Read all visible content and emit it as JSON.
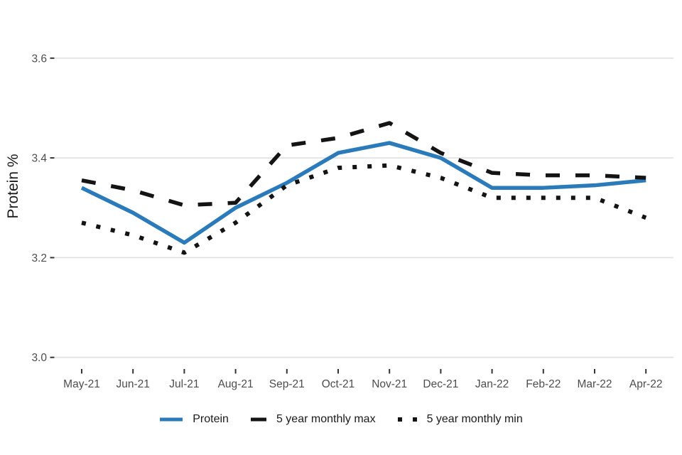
{
  "chart_data": {
    "type": "line",
    "title": "",
    "xlabel": "",
    "ylabel": "Protein %",
    "x": [
      "May-21",
      "Jun-21",
      "Jul-21",
      "Aug-21",
      "Sep-21",
      "Oct-21",
      "Nov-21",
      "Dec-21",
      "Jan-22",
      "Feb-22",
      "Mar-22",
      "Apr-22"
    ],
    "y_ticks": [
      3.0,
      3.2,
      3.4,
      3.6
    ],
    "y_tick_labels": [
      "3.0",
      "3.2",
      "3.4",
      "3.6"
    ],
    "ylim": [
      2.98,
      3.68
    ],
    "grid": "horizontal-only",
    "legend_position": "bottom",
    "series": [
      {
        "name": "Protein",
        "style": "solid",
        "color": "#2b7bba",
        "values": [
          3.34,
          3.29,
          3.23,
          3.3,
          3.35,
          3.41,
          3.43,
          3.4,
          3.34,
          3.34,
          3.345,
          3.355
        ]
      },
      {
        "name": "5 year monthly max",
        "style": "dashed",
        "color": "#141414",
        "values": [
          3.355,
          3.335,
          3.305,
          3.31,
          3.425,
          3.44,
          3.47,
          3.41,
          3.37,
          3.365,
          3.365,
          3.36
        ]
      },
      {
        "name": "5 year monthly min",
        "style": "dotted",
        "color": "#141414",
        "values": [
          3.27,
          3.245,
          3.21,
          3.27,
          3.345,
          3.38,
          3.385,
          3.36,
          3.32,
          3.32,
          3.32,
          3.28
        ]
      }
    ],
    "styles": {
      "gridline_color": "#e3e3e3",
      "tick_mark_color": "#333333",
      "tick_label_color": "#4d4d4d",
      "axis_title_color": "#1a1a1a",
      "background": "#ffffff"
    }
  }
}
